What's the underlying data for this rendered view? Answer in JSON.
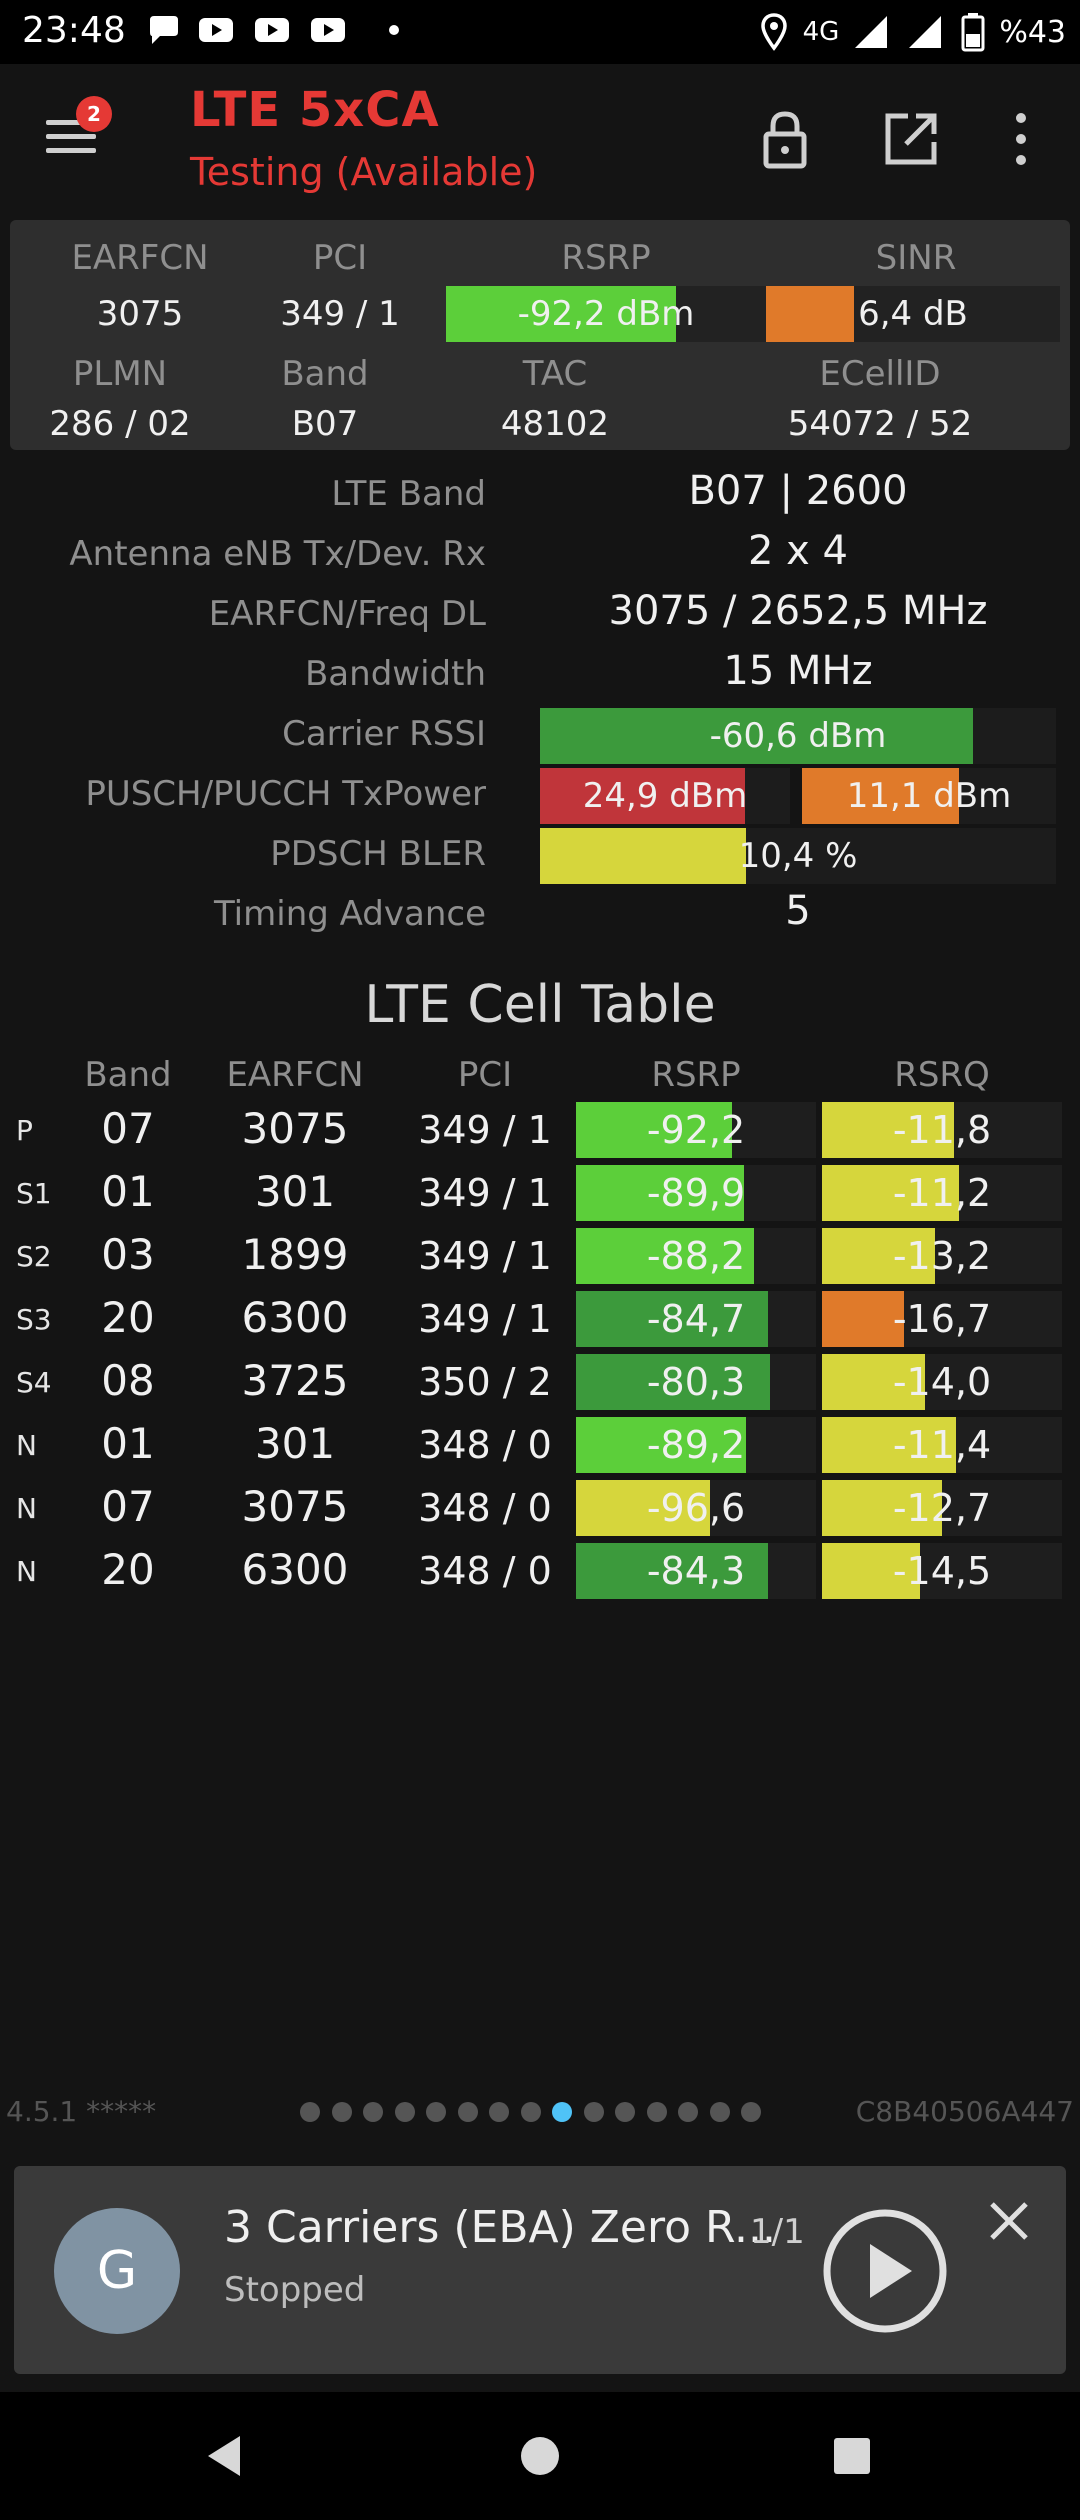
{
  "status_bar": {
    "time": "23:48",
    "network": "4G",
    "battery": "%43",
    "icons": [
      "chat-bubble-icon",
      "youtube-icon",
      "youtube-icon",
      "youtube-icon",
      "dot-icon",
      "location-icon",
      "signal-icon",
      "signal-icon",
      "battery-icon"
    ]
  },
  "app_bar": {
    "badge": "2",
    "title": "LTE 5xCA",
    "subtitle": "Testing (Available)",
    "icons": [
      "menu-icon",
      "lock-icon",
      "open-external-icon",
      "more-vert-icon"
    ]
  },
  "panel": {
    "labels": {
      "earfcn": "EARFCN",
      "pci": "PCI",
      "rsrp": "RSRP",
      "sinr": "SINR",
      "plmn": "PLMN",
      "band": "Band",
      "tac": "TAC",
      "ecellid": "ECellID"
    },
    "earfcn": "3075",
    "pci": "349 / 1",
    "rsrp": {
      "text": "-92,2 dBm",
      "fill": 0.72,
      "color": "#5ccf3a"
    },
    "sinr": {
      "text": "6,4 dB",
      "fill": 0.3,
      "color": "#e07a2a"
    },
    "plmn": "286 / 02",
    "band": "B07",
    "tac": "48102",
    "ecellid": "54072 / 52"
  },
  "details": {
    "lte_band": {
      "label": "LTE Band",
      "value": "B07 | 2600"
    },
    "antenna": {
      "label": "Antenna eNB Tx/Dev. Rx",
      "value": "2 x 4"
    },
    "earfcn_freq": {
      "label": "EARFCN/Freq DL",
      "value": "3075 / 2652,5 MHz"
    },
    "bandwidth": {
      "label": "Bandwidth",
      "value": "15 MHz"
    },
    "carrier_rssi": {
      "label": "Carrier RSSI",
      "value": "-60,6 dBm",
      "fill": 0.84,
      "color": "#3c9a3c"
    },
    "txpower": {
      "label": "PUSCH/PUCCH TxPower",
      "pusch": "24,9 dBm",
      "pusch_fill": 0.82,
      "pusch_color": "#c0353a",
      "pucch": "11,1 dBm",
      "pucch_fill": 0.62,
      "pucch_color": "#e07a2a"
    },
    "bler": {
      "label": "PDSCH BLER",
      "value": "10,4 %",
      "fill": 0.4,
      "color": "#d6d63c"
    },
    "timing_advance": {
      "label": "Timing Advance",
      "value": "5"
    }
  },
  "cell_table": {
    "title": "LTE Cell Table",
    "headers": {
      "band": "Band",
      "earfcn": "EARFCN",
      "pci": "PCI",
      "rsrp": "RSRP",
      "rsrq": "RSRQ"
    },
    "rows": [
      {
        "type": "P",
        "band": "07",
        "earfcn": "3075",
        "pci": "349 / 1",
        "rsrp": "-92,2",
        "rsrp_fill": 0.65,
        "rsrp_color": "#5ccf3a",
        "rsrq": "-11,8",
        "rsrq_fill": 0.55,
        "rsrq_color": "#d6d63c"
      },
      {
        "type": "S1",
        "band": "01",
        "earfcn": "301",
        "pci": "349 / 1",
        "rsrp": "-89,9",
        "rsrp_fill": 0.7,
        "rsrp_color": "#5ccf3a",
        "rsrq": "-11,2",
        "rsrq_fill": 0.57,
        "rsrq_color": "#d6d63c"
      },
      {
        "type": "S2",
        "band": "03",
        "earfcn": "1899",
        "pci": "349 / 1",
        "rsrp": "-88,2",
        "rsrp_fill": 0.74,
        "rsrp_color": "#5ccf3a",
        "rsrq": "-13,2",
        "rsrq_fill": 0.47,
        "rsrq_color": "#d6d63c"
      },
      {
        "type": "S3",
        "band": "20",
        "earfcn": "6300",
        "pci": "349 / 1",
        "rsrp": "-84,7",
        "rsrp_fill": 0.8,
        "rsrp_color": "#3c9a3c",
        "rsrq": "-16,7",
        "rsrq_fill": 0.34,
        "rsrq_color": "#e07a2a"
      },
      {
        "type": "S4",
        "band": "08",
        "earfcn": "3725",
        "pci": "350 / 2",
        "rsrp": "-80,3",
        "rsrp_fill": 0.81,
        "rsrp_color": "#3c9a3c",
        "rsrq": "-14,0",
        "rsrq_fill": 0.43,
        "rsrq_color": "#d6d63c"
      },
      {
        "type": "N",
        "band": "01",
        "earfcn": "301",
        "pci": "348 / 0",
        "rsrp": "-89,2",
        "rsrp_fill": 0.71,
        "rsrp_color": "#5ccf3a",
        "rsrq": "-11,4",
        "rsrq_fill": 0.56,
        "rsrq_color": "#d6d63c"
      },
      {
        "type": "N",
        "band": "07",
        "earfcn": "3075",
        "pci": "348 / 0",
        "rsrp": "-96,6",
        "rsrp_fill": 0.56,
        "rsrp_color": "#d6d63c",
        "rsrq": "-12,7",
        "rsrq_fill": 0.5,
        "rsrq_color": "#d6d63c"
      },
      {
        "type": "N",
        "band": "20",
        "earfcn": "6300",
        "pci": "348 / 0",
        "rsrp": "-84,3",
        "rsrp_fill": 0.8,
        "rsrp_color": "#3c9a3c",
        "rsrq": "-14,5",
        "rsrq_fill": 0.41,
        "rsrq_color": "#d6d63c"
      }
    ]
  },
  "footer": {
    "version": "4.5.1 *****",
    "device_id": "C8B40506A447",
    "page_count": 15,
    "active_page": 8
  },
  "player": {
    "avatar_letter": "G",
    "title": "3 Carriers (EBA) Zero R...",
    "count": "1/1",
    "status": "Stopped",
    "icons": [
      "play-circle-icon",
      "close-icon"
    ]
  },
  "nav_bar": {
    "icons": [
      "back-icon",
      "home-icon",
      "recents-icon"
    ]
  }
}
